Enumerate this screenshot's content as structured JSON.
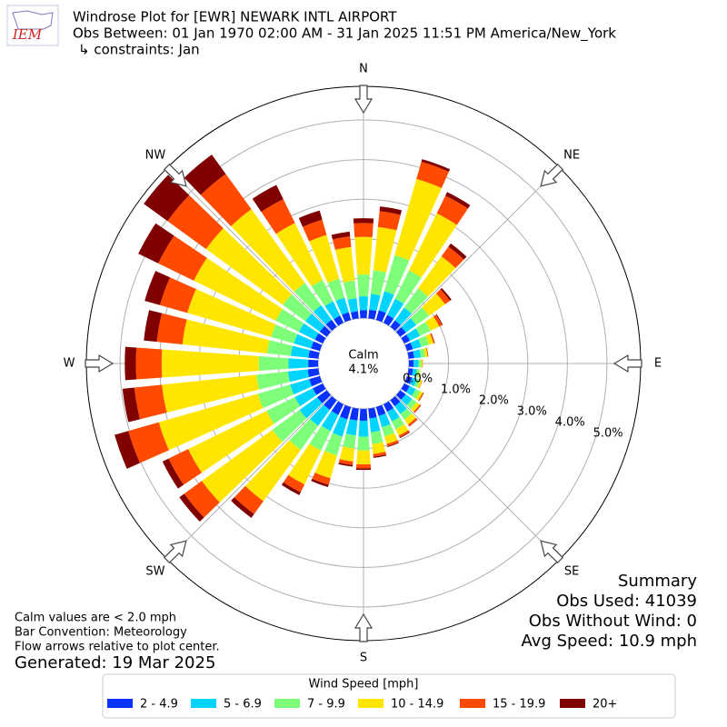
{
  "chart_data": {
    "type": "windrose",
    "title": "Windrose Plot for [EWR] NEWARK INTL AIRPORT",
    "subtitle": "Obs Between: 01 Jan 1970 02:00 AM - 31 Jan 2025 11:51 PM America/New_York",
    "constraints": "↳ constraints: Jan",
    "logo_text": "IEM",
    "x": [
      0,
      10,
      20,
      30,
      40,
      50,
      60,
      70,
      80,
      90,
      100,
      110,
      120,
      130,
      140,
      150,
      160,
      170,
      180,
      190,
      200,
      210,
      220,
      230,
      240,
      250,
      260,
      270,
      280,
      290,
      300,
      310,
      320,
      330,
      340,
      350
    ],
    "xticks": [
      {
        "value": 0,
        "label": "N"
      },
      {
        "value": 45,
        "label": "NE"
      },
      {
        "value": 90,
        "label": "E"
      },
      {
        "value": 135,
        "label": "SE"
      },
      {
        "value": 180,
        "label": "S"
      },
      {
        "value": 225,
        "label": "SW"
      },
      {
        "value": 270,
        "label": "W"
      },
      {
        "value": 315,
        "label": "NW"
      }
    ],
    "ylim": [
      0,
      5.85
    ],
    "yticks": [
      {
        "value": 0,
        "label": "0.0%"
      },
      {
        "value": 1,
        "label": "1.0%"
      },
      {
        "value": 2,
        "label": "2.0%"
      },
      {
        "value": 3,
        "label": "3.0%"
      },
      {
        "value": 4,
        "label": "4.0%"
      },
      {
        "value": 5,
        "label": "5.0%"
      }
    ],
    "grid": true,
    "calm_label": "Calm",
    "calm_value": {
      "value": 4.1,
      "label": "4.1%"
    },
    "legend_title": "Wind Speed [mph]",
    "series": [
      {
        "name": "2 - 4.9",
        "color": "#0a32ff",
        "values": [
          0.2,
          0.22,
          0.25,
          0.22,
          0.2,
          0.18,
          0.16,
          0.15,
          0.14,
          0.12,
          0.11,
          0.13,
          0.15,
          0.17,
          0.19,
          0.21,
          0.23,
          0.25,
          0.3,
          0.3,
          0.32,
          0.3,
          0.3,
          0.3,
          0.28,
          0.28,
          0.27,
          0.25,
          0.25,
          0.23,
          0.22,
          0.22,
          0.22,
          0.2,
          0.2,
          0.18
        ]
      },
      {
        "name": "5 - 6.9",
        "color": "#00d4ff",
        "values": [
          0.35,
          0.4,
          0.5,
          0.45,
          0.4,
          0.32,
          0.28,
          0.22,
          0.17,
          0.12,
          0.1,
          0.13,
          0.17,
          0.2,
          0.24,
          0.27,
          0.3,
          0.35,
          0.4,
          0.38,
          0.45,
          0.45,
          0.5,
          0.55,
          0.5,
          0.5,
          0.5,
          0.5,
          0.45,
          0.45,
          0.45,
          0.45,
          0.45,
          0.4,
          0.38,
          0.33
        ]
      },
      {
        "name": "7 - 9.9",
        "color": "#7dff7a",
        "values": [
          0.55,
          0.6,
          0.95,
          0.8,
          0.6,
          0.4,
          0.3,
          0.2,
          0.11,
          0.07,
          0.06,
          0.08,
          0.12,
          0.14,
          0.18,
          0.22,
          0.24,
          0.3,
          0.35,
          0.33,
          0.5,
          0.55,
          0.75,
          0.85,
          0.8,
          0.85,
          0.8,
          0.75,
          0.6,
          0.6,
          0.65,
          0.7,
          0.7,
          0.6,
          0.5,
          0.45
        ]
      },
      {
        "name": "10 - 14.9",
        "color": "#ffe600",
        "values": [
          0.95,
          1.1,
          2.0,
          1.6,
          1.0,
          0.5,
          0.24,
          0.12,
          0.06,
          0.03,
          0.03,
          0.05,
          0.08,
          0.1,
          0.15,
          0.18,
          0.2,
          0.25,
          0.35,
          0.33,
          0.6,
          0.95,
          1.6,
          2.2,
          2.2,
          2.6,
          2.4,
          2.45,
          2.15,
          2.2,
          2.3,
          2.4,
          2.3,
          1.6,
          1.15,
          0.85
        ]
      },
      {
        "name": "15 - 19.9",
        "color": "#ff4a00",
        "values": [
          0.35,
          0.4,
          0.45,
          0.5,
          0.3,
          0.15,
          0.08,
          0.03,
          0.02,
          0.01,
          0,
          0.01,
          0.02,
          0.03,
          0.05,
          0.05,
          0.06,
          0.07,
          0.1,
          0.09,
          0.17,
          0.22,
          0.4,
          0.55,
          0.55,
          0.8,
          0.7,
          0.65,
          0.65,
          0.72,
          1.0,
          1.2,
          1.1,
          0.67,
          0.4,
          0.27
        ]
      },
      {
        "name": "20+",
        "color": "#800000",
        "values": [
          0.12,
          0.12,
          0.07,
          0.1,
          0.1,
          0.05,
          0.02,
          0.01,
          0,
          0,
          0,
          0,
          0.01,
          0.01,
          0.01,
          0.02,
          0.02,
          0.03,
          0.04,
          0.04,
          0.06,
          0.08,
          0.12,
          0.15,
          0.17,
          0.36,
          0.3,
          0.28,
          0.33,
          0.4,
          0.56,
          0.74,
          0.6,
          0.4,
          0.24,
          0.12
        ]
      }
    ],
    "notes": [
      "Calm values are < 2.0 mph",
      "Bar Convention: Meteorology",
      "Flow arrows relative to plot center."
    ],
    "generated": "Generated: 19 Mar 2025",
    "summary": {
      "title": "Summary",
      "lines": [
        "Obs Used: 41039",
        "Obs Without Wind: 0",
        "Avg Speed: 10.9 mph"
      ]
    }
  }
}
